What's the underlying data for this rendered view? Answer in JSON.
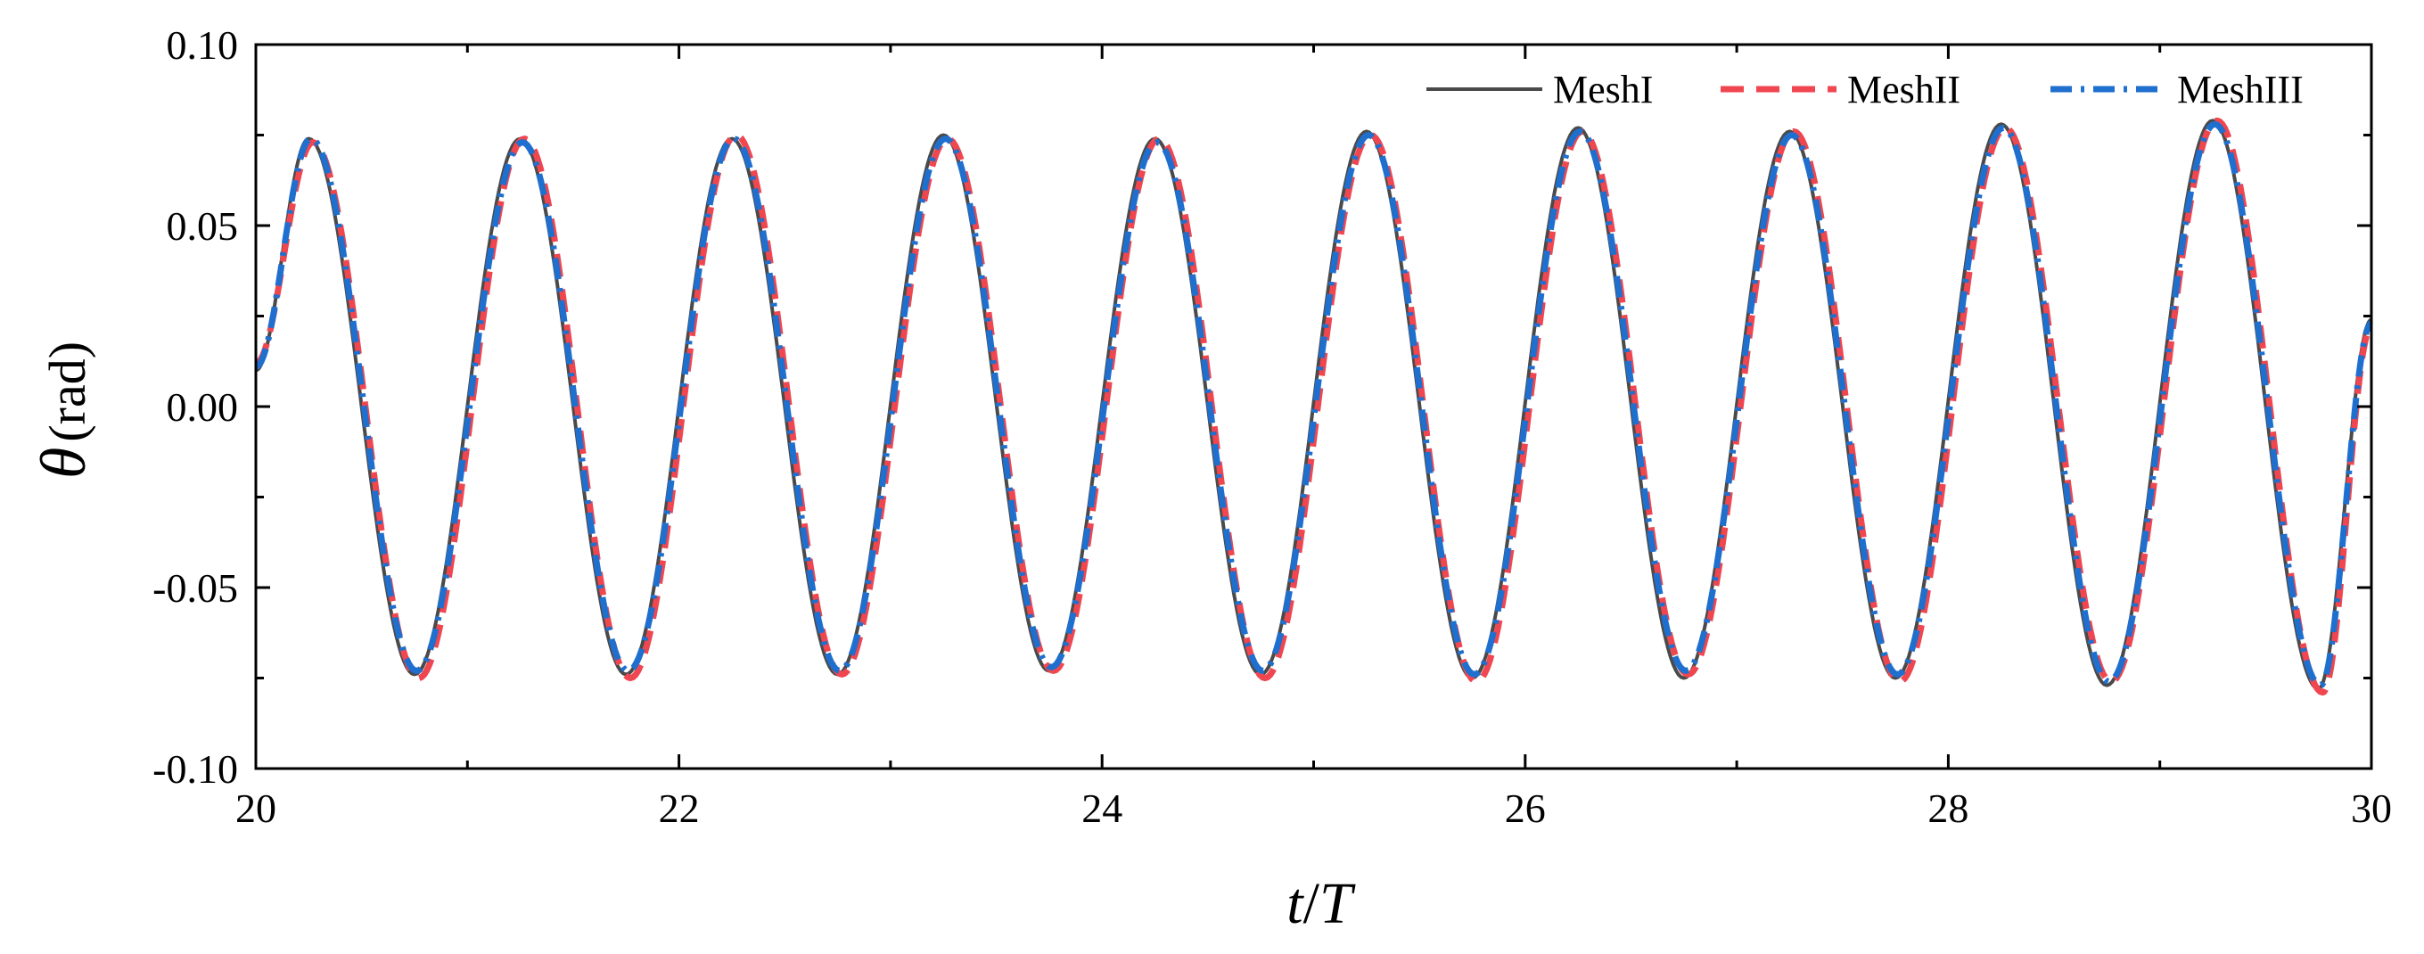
{
  "chart_data": {
    "type": "line",
    "xlabel": {
      "italic": "t",
      "sep": "/",
      "italic2": "T"
    },
    "ylabel": {
      "symbol": "θ",
      "unit": "(rad)"
    },
    "xlim": [
      20,
      30
    ],
    "ylim": [
      -0.1,
      0.1
    ],
    "x_ticks": [
      "20",
      "22",
      "24",
      "26",
      "28",
      "30"
    ],
    "x_tick_values": [
      20,
      22,
      24,
      26,
      28,
      30
    ],
    "x_minor_tick_values": [
      21,
      23,
      25,
      27,
      29
    ],
    "y_ticks": [
      "0.10",
      "0.05",
      "0.00",
      "-0.05",
      "-0.10"
    ],
    "y_tick_values": [
      0.1,
      0.05,
      0.0,
      -0.05,
      -0.1
    ],
    "grid": false,
    "legend_position": "top-right",
    "series": [
      {
        "name": "MeshI",
        "color": "#4a4a4a",
        "style": "solid",
        "x": [
          20.0,
          20.25,
          20.75,
          21.25,
          21.75,
          22.25,
          22.75,
          23.25,
          23.75,
          24.25,
          24.75,
          25.25,
          25.75,
          26.25,
          26.75,
          27.25,
          27.75,
          28.25,
          28.75,
          29.25,
          29.75,
          30.0
        ],
        "y": [
          0.01,
          0.074,
          -0.074,
          0.074,
          -0.074,
          0.074,
          -0.074,
          0.075,
          -0.073,
          0.074,
          -0.074,
          0.076,
          -0.075,
          0.077,
          -0.075,
          0.076,
          -0.075,
          0.078,
          -0.077,
          0.079,
          -0.078,
          0.024
        ]
      },
      {
        "name": "MeshII",
        "color": "#f04650",
        "style": "dashed",
        "x": [
          20.0,
          20.27,
          20.77,
          21.27,
          21.77,
          22.27,
          22.77,
          23.27,
          23.77,
          24.27,
          24.77,
          25.27,
          25.77,
          26.27,
          26.77,
          27.27,
          27.77,
          28.27,
          28.77,
          29.27,
          29.77,
          30.0
        ],
        "y": [
          0.012,
          0.073,
          -0.075,
          0.074,
          -0.075,
          0.075,
          -0.074,
          0.074,
          -0.073,
          0.074,
          -0.075,
          0.075,
          -0.076,
          0.076,
          -0.074,
          0.076,
          -0.076,
          0.077,
          -0.076,
          0.079,
          -0.079,
          0.022
        ]
      },
      {
        "name": "MeshIII",
        "color": "#1f6fcf",
        "style": "dashdot",
        "x": [
          20.0,
          20.26,
          20.76,
          21.26,
          21.76,
          22.26,
          22.76,
          23.26,
          23.76,
          24.26,
          24.76,
          25.26,
          25.76,
          26.26,
          26.76,
          27.26,
          27.76,
          28.26,
          28.76,
          29.26,
          29.76,
          30.0
        ],
        "y": [
          0.011,
          0.074,
          -0.073,
          0.073,
          -0.073,
          0.074,
          -0.073,
          0.074,
          -0.072,
          0.073,
          -0.073,
          0.075,
          -0.074,
          0.076,
          -0.073,
          0.075,
          -0.074,
          0.077,
          -0.076,
          0.078,
          -0.077,
          0.023
        ]
      }
    ]
  }
}
